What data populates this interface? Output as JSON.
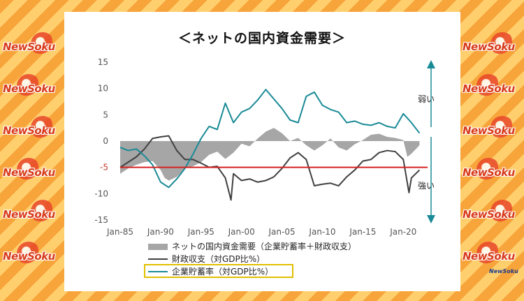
{
  "brand": {
    "watermark_text": "NewSoku",
    "corner_logo_text": "NewSoku"
  },
  "chart_data": {
    "type": "line",
    "title": "＜ネットの国内資金需要＞",
    "x_tick_labels": [
      "Jan-85",
      "Jan-90",
      "Jan-95",
      "Jan-00",
      "Jan-05",
      "Jan-10",
      "Jan-15",
      "Jan-20"
    ],
    "x_range": [
      1985.0,
      2023.0
    ],
    "ylim": [
      -15,
      15
    ],
    "y_ticks": [
      15,
      10,
      5,
      0,
      -5,
      -10,
      -15
    ],
    "reference_line": {
      "value": -5,
      "color": "#d62020"
    },
    "annotations": {
      "up": "弱い",
      "down": "強い"
    },
    "legend_position": "bottom",
    "colors": {
      "net": "#a6a6a6",
      "fiscal": "#404040",
      "corporate": "#1a8a96",
      "reference": "#d62020"
    },
    "series": [
      {
        "name": "ネットの国内資金需要（企業貯蓄率＋財政収支）",
        "kind": "area",
        "x": [
          1985.0,
          1986.0,
          1987.0,
          1988.0,
          1989.0,
          1990.0,
          1990.5,
          1991.0,
          1992.0,
          1993.0,
          1994.0,
          1995.0,
          1996.0,
          1997.0,
          1998.0,
          1999.0,
          2000.0,
          2001.0,
          2002.0,
          2003.0,
          2004.0,
          2005.0,
          2006.0,
          2007.0,
          2008.0,
          2009.0,
          2010.0,
          2011.0,
          2012.0,
          2013.0,
          2014.0,
          2015.0,
          2016.0,
          2017.0,
          2018.0,
          2019.0,
          2020.0,
          2020.5,
          2021.0,
          2022.0
        ],
        "values": [
          -6.2,
          -5.2,
          -4.5,
          -4.0,
          -3.8,
          -5.5,
          -7.0,
          -7.5,
          -6.8,
          -5.2,
          -4.8,
          -4.0,
          -2.6,
          -2.0,
          -3.4,
          -2.2,
          -0.5,
          -1.0,
          0.5,
          1.8,
          2.5,
          1.5,
          0.0,
          0.6,
          -0.8,
          -1.8,
          -0.8,
          0.5,
          -1.2,
          -1.8,
          -0.6,
          0.2,
          1.2,
          1.4,
          0.8,
          0.6,
          0.2,
          -3.0,
          -2.4,
          -0.8
        ]
      },
      {
        "name": "財政収支（対GDP比%）",
        "kind": "line",
        "x": [
          1985.0,
          1986.0,
          1987.0,
          1988.0,
          1989.0,
          1990.0,
          1991.0,
          1992.0,
          1993.0,
          1994.0,
          1995.0,
          1996.0,
          1997.0,
          1998.0,
          1998.7,
          1999.0,
          2000.0,
          2001.0,
          2002.0,
          2003.0,
          2004.0,
          2005.0,
          2006.0,
          2007.0,
          2008.0,
          2009.0,
          2010.0,
          2011.0,
          2012.0,
          2013.0,
          2014.0,
          2015.0,
          2016.0,
          2017.0,
          2018.0,
          2019.0,
          2020.0,
          2020.7,
          2021.0,
          2022.0
        ],
        "values": [
          -5.0,
          -4.0,
          -3.0,
          -1.5,
          0.5,
          0.8,
          1.0,
          -1.8,
          -3.5,
          -3.5,
          -4.2,
          -5.0,
          -4.8,
          -7.0,
          -11.2,
          -6.2,
          -7.5,
          -7.2,
          -7.8,
          -7.5,
          -6.8,
          -5.2,
          -3.2,
          -2.2,
          -3.5,
          -8.5,
          -8.2,
          -8.0,
          -8.5,
          -6.8,
          -5.5,
          -3.8,
          -3.5,
          -2.2,
          -1.8,
          -2.0,
          -3.5,
          -9.8,
          -7.0,
          -5.5
        ]
      },
      {
        "name": "企業貯蓄率（対GDP比%）",
        "kind": "line",
        "x": [
          1985.0,
          1986.0,
          1987.0,
          1988.0,
          1989.0,
          1990.0,
          1991.0,
          1992.0,
          1993.0,
          1994.0,
          1995.0,
          1996.0,
          1997.0,
          1998.0,
          1999.0,
          2000.0,
          2001.0,
          2002.0,
          2003.0,
          2004.0,
          2005.0,
          2006.0,
          2007.0,
          2008.0,
          2009.0,
          2010.0,
          2011.0,
          2012.0,
          2013.0,
          2014.0,
          2015.0,
          2016.0,
          2017.0,
          2018.0,
          2019.0,
          2020.0,
          2021.0,
          2022.0
        ],
        "values": [
          -1.2,
          -1.8,
          -1.5,
          -2.8,
          -4.5,
          -7.8,
          -8.8,
          -7.2,
          -5.2,
          -2.5,
          0.5,
          2.8,
          2.2,
          7.2,
          3.5,
          5.5,
          6.2,
          7.8,
          9.8,
          8.0,
          6.2,
          4.0,
          3.5,
          8.5,
          9.3,
          6.8,
          6.0,
          5.5,
          3.5,
          3.8,
          3.2,
          3.0,
          3.5,
          2.8,
          2.5,
          5.2,
          3.5,
          1.5
        ]
      }
    ]
  }
}
